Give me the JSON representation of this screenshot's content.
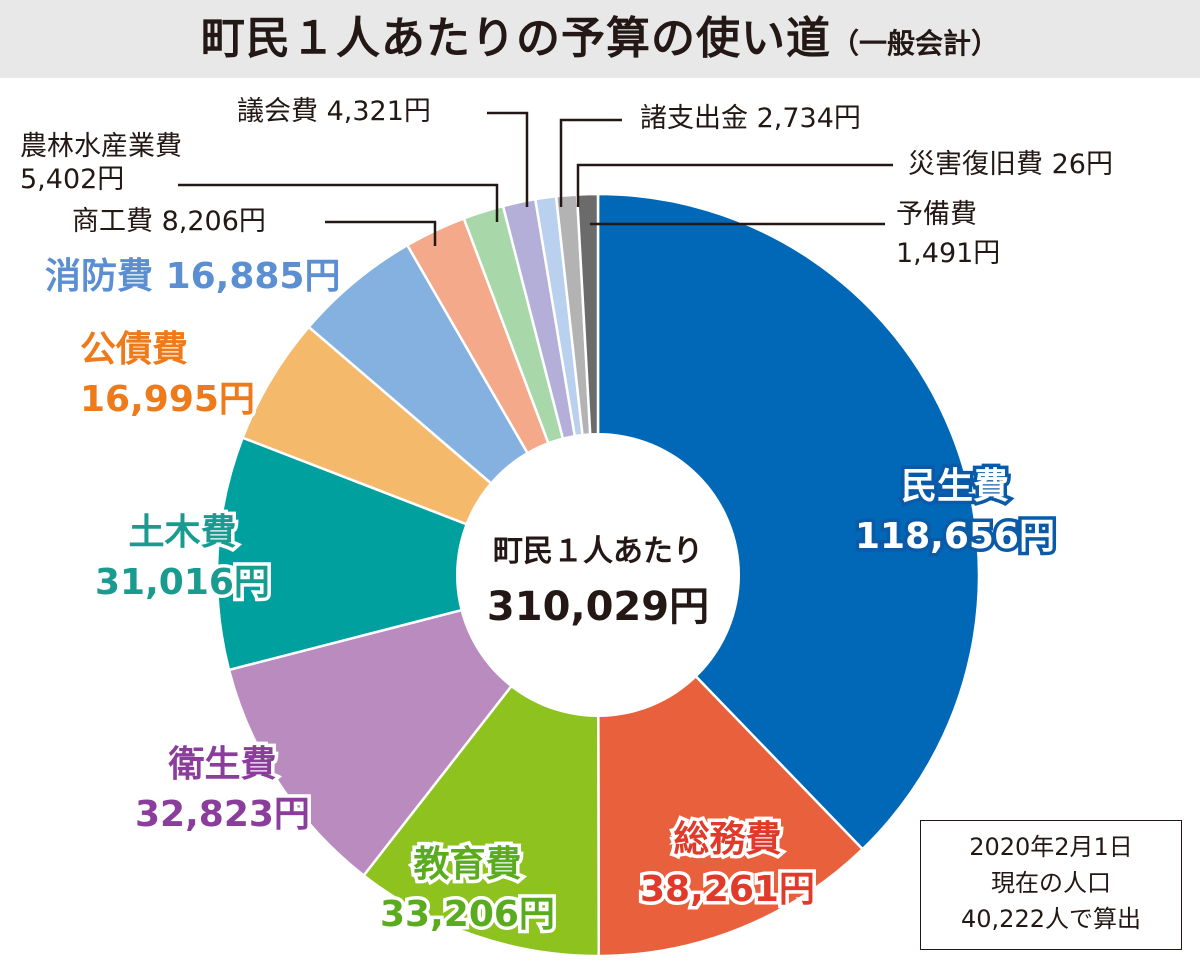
{
  "title": {
    "main": "町民１人あたりの予算の使い道",
    "sub": "（一般会計）"
  },
  "chart_data": {
    "type": "pie",
    "title": "町民１人あたりの予算の使い道（一般会計）",
    "center_label": "町民１人あたり",
    "center_value": "310,029円",
    "unit": "円",
    "slices": [
      {
        "name": "民生費",
        "value": 118656,
        "label": "118,656円",
        "color": "#0068b7"
      },
      {
        "name": "総務費",
        "value": 38261,
        "label": "38,261円",
        "color": "#e9603d"
      },
      {
        "name": "教育費",
        "value": 33206,
        "label": "33,206円",
        "color": "#8dc21f"
      },
      {
        "name": "衛生費",
        "value": 32823,
        "label": "32,823円",
        "color": "#b98bbf"
      },
      {
        "name": "土木費",
        "value": 31016,
        "label": "31,016円",
        "color": "#00a09f"
      },
      {
        "name": "公債費",
        "value": 16995,
        "label": "16,995円",
        "color": "#f5b96b"
      },
      {
        "name": "消防費",
        "value": 16885,
        "label": "16,885円",
        "color": "#84b1e0"
      },
      {
        "name": "商工費",
        "value": 8206,
        "label": "8,206円",
        "color": "#f3a98a"
      },
      {
        "name": "農林水産業費",
        "value": 5402,
        "label": "5,402円",
        "color": "#a8d8a9"
      },
      {
        "name": "議会費",
        "value": 4321,
        "label": "4,321円",
        "color": "#b4afd9"
      },
      {
        "name": "諸支出金",
        "value": 2734,
        "label": "2,734円",
        "color": "#b9d1ee"
      },
      {
        "name": "災害復旧費",
        "value": 26,
        "label": "26円",
        "color": "#b3b3b3"
      },
      {
        "name": "予備費",
        "value": 1491,
        "label": "1,491円",
        "color": "#6b6b6b"
      }
    ]
  },
  "note": {
    "line1": "2020年2月1日",
    "line2": "現在の人口",
    "line3": "40,222人で算出"
  }
}
